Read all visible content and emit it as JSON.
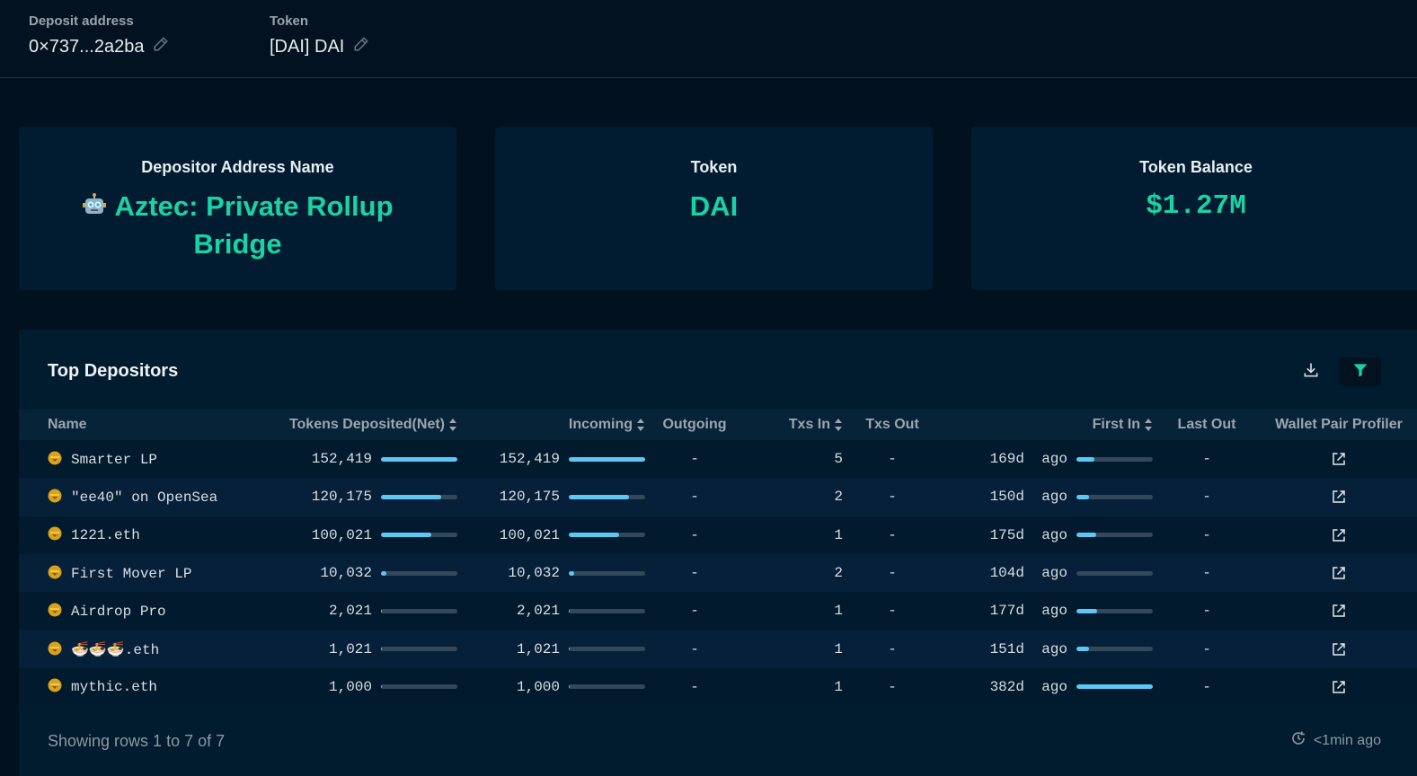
{
  "topbar": {
    "deposit_address": {
      "label": "Deposit address",
      "value": "0×737...2a2ba",
      "icon": "pencil-icon"
    },
    "token": {
      "label": "Token",
      "value": "[DAI] DAI",
      "icon": "pencil-icon"
    }
  },
  "cards": [
    {
      "label": "Depositor Address Name",
      "value": "Aztec: Private Rollup Bridge",
      "icon": "robot-icon"
    },
    {
      "label": "Token",
      "value": "DAI"
    },
    {
      "label": "Token Balance",
      "value": "$1.27M"
    }
  ],
  "colors": {
    "accent": "#19d3a7",
    "bar_fill": "#5cc9f5",
    "bar_track": "#33485a",
    "background": "#01111f",
    "panel": "#011b2f"
  },
  "table": {
    "title": "Top Depositors",
    "actions": {
      "download": "download-icon",
      "filter": "filter-icon"
    },
    "columns": [
      {
        "label": "Name",
        "sortable": false
      },
      {
        "label": "Tokens Deposited(Net)",
        "sortable": true
      },
      {
        "label": "Incoming",
        "sortable": true
      },
      {
        "label": "Outgoing",
        "sortable": false
      },
      {
        "label": "Txs In",
        "sortable": true
      },
      {
        "label": "Txs Out",
        "sortable": false
      },
      {
        "label": "First In",
        "sortable": true
      },
      {
        "label": "Last Out",
        "sortable": false
      },
      {
        "label": "Wallet Pair Profiler",
        "sortable": false
      }
    ],
    "rows": [
      {
        "name": "Smarter LP",
        "deposited": "152,419",
        "deposited_pct": 100,
        "incoming": "152,419",
        "incoming_pct": 100,
        "outgoing": "-",
        "txs_in": "5",
        "txs_out": "-",
        "first_in": "169d  ago",
        "first_in_pct": 23,
        "last_out": "-"
      },
      {
        "name": "\"ee40\" on OpenSea",
        "deposited": "120,175",
        "deposited_pct": 79,
        "incoming": "120,175",
        "incoming_pct": 79,
        "outgoing": "-",
        "txs_in": "2",
        "txs_out": "-",
        "first_in": "150d  ago",
        "first_in_pct": 17,
        "last_out": "-"
      },
      {
        "name": "1221.eth",
        "deposited": "100,021",
        "deposited_pct": 66,
        "incoming": "100,021",
        "incoming_pct": 66,
        "outgoing": "-",
        "txs_in": "1",
        "txs_out": "-",
        "first_in": "175d  ago",
        "first_in_pct": 26,
        "last_out": "-"
      },
      {
        "name": "First Mover LP",
        "deposited": "10,032",
        "deposited_pct": 7,
        "incoming": "10,032",
        "incoming_pct": 7,
        "outgoing": "-",
        "txs_in": "2",
        "txs_out": "-",
        "first_in": "104d  ago",
        "first_in_pct": 0,
        "last_out": "-"
      },
      {
        "name": "Airdrop Pro",
        "deposited": "2,021",
        "deposited_pct": 1.3,
        "incoming": "2,021",
        "incoming_pct": 1.3,
        "outgoing": "-",
        "txs_in": "1",
        "txs_out": "-",
        "first_in": "177d  ago",
        "first_in_pct": 27,
        "last_out": "-"
      },
      {
        "name": "🍜🍜🍜.eth",
        "deposited": "1,021",
        "deposited_pct": 0.7,
        "incoming": "1,021",
        "incoming_pct": 0.7,
        "outgoing": "-",
        "txs_in": "1",
        "txs_out": "-",
        "first_in": "151d  ago",
        "first_in_pct": 17,
        "last_out": "-"
      },
      {
        "name": "mythic.eth",
        "deposited": "1,000",
        "deposited_pct": 0.6,
        "incoming": "1,000",
        "incoming_pct": 0.6,
        "outgoing": "-",
        "txs_in": "1",
        "txs_out": "-",
        "first_in": "382d  ago",
        "first_in_pct": 100,
        "last_out": "-"
      }
    ],
    "footer": {
      "showing": "Showing rows 1 to 7 of 7",
      "updated": "<1min ago",
      "updated_icon": "refresh-clock-icon"
    }
  }
}
